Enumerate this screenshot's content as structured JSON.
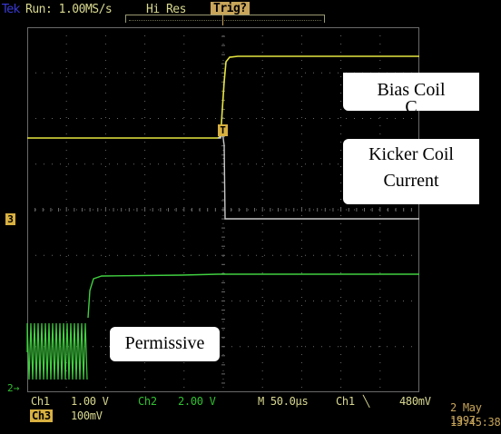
{
  "status_bar": {
    "brand": "Tek",
    "run_status": "Run: 1.00MS/s",
    "acq_mode": "Hi Res",
    "trigger_state": "Trig?"
  },
  "markers": {
    "ch3": "3",
    "ch2": "2→",
    "trigger": "T"
  },
  "annotations": {
    "bias_coil": "Bias Coil",
    "bias_coil_clipped": "C",
    "kicker_line1": "Kicker Coil",
    "kicker_line2": "Current",
    "permissive": "Permissive"
  },
  "readout": {
    "ch1_label": "Ch1",
    "ch1_scale": "1.00 V",
    "ch2_label": "Ch2",
    "ch2_scale": "2.00 V",
    "timebase": "M 50.0µs",
    "trig_source": "Ch1",
    "trig_slope": "╲",
    "trig_level": "480mV",
    "ch3_label": "Ch3",
    "ch3_scale": "100mV",
    "date": "2 May 1997",
    "time": "13:45:38"
  },
  "colors": {
    "ch1_trace": "#e6e640",
    "ch2_trace": "#40d040",
    "ch3_trace": "#c8c8c8",
    "grid": "#6a6a6a",
    "accent": "#d8b040"
  }
}
